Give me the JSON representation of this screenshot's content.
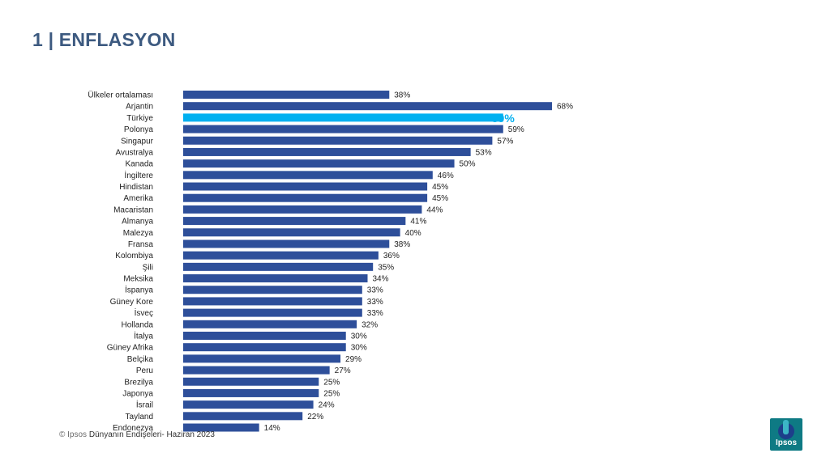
{
  "header": {
    "title": "1 | ENFLASYON"
  },
  "footer": {
    "copyright": "© Ipsos",
    "source": "Dünyanın Endişeleri- Haziran 2023"
  },
  "logo": {
    "text": "Ipsos",
    "icon": "ipsos-logo-icon"
  },
  "colors": {
    "bar": "#2e4f9a",
    "highlight": "#00b0f0",
    "title": "#3d5a80"
  },
  "chart_data": {
    "type": "bar",
    "orientation": "horizontal",
    "categories": [
      "Ülkeler ortalaması",
      "Arjantin",
      "Türkiye",
      "Polonya",
      "Singapur",
      "Avustralya",
      "Kanada",
      "İngiltere",
      "Hindistan",
      "Amerika",
      "Macaristan",
      "Almanya",
      "Malezya",
      "Fransa",
      "Kolombiya",
      "Şili",
      "Meksika",
      "İspanya",
      "Güney Kore",
      "İsveç",
      "Hollanda",
      "İtalya",
      "Güney Afrika",
      "Belçika",
      "Peru",
      "Brezilya",
      "Japonya",
      "İsrail",
      "Tayland",
      "Endonezya"
    ],
    "values": [
      38,
      68,
      59,
      59,
      57,
      53,
      50,
      46,
      45,
      45,
      44,
      41,
      40,
      38,
      36,
      35,
      34,
      33,
      33,
      33,
      32,
      30,
      30,
      29,
      27,
      25,
      25,
      24,
      22,
      14
    ],
    "labels": [
      "38%",
      "68%",
      "59%",
      "59%",
      "57%",
      "53%",
      "50%",
      "46%",
      "45%",
      "45%",
      "44%",
      "41%",
      "40%",
      "38%",
      "36%",
      "35%",
      "34%",
      "33%",
      "33%",
      "33%",
      "32%",
      "30%",
      "30%",
      "29%",
      "27%",
      "25%",
      "25%",
      "24%",
      "22%",
      "14%"
    ],
    "highlight_index": 2,
    "xlim": [
      0,
      68
    ],
    "grid": false,
    "legend": "none"
  }
}
